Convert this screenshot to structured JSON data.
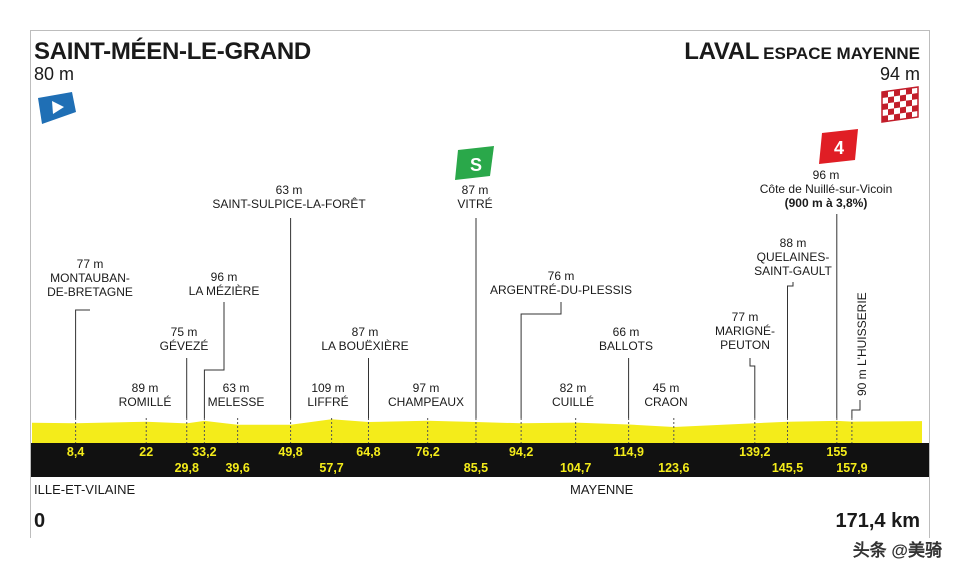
{
  "start": {
    "name": "SAINT-MÉEN-LE-GRAND",
    "altitude": "80 m"
  },
  "finish": {
    "name": "LAVAL",
    "subname": "ESPACE MAYENNE",
    "altitude": "94 m"
  },
  "regions": {
    "left": "ILLE-ET-VILAINE",
    "right": "MAYENNE"
  },
  "distance": {
    "start": "0",
    "end": "171,4 km"
  },
  "watermark": "头条 @美骑",
  "colors": {
    "profile": "#f4ec1a",
    "strip": "#111111",
    "sprint": "#2aa84a",
    "climb": "#e01e25",
    "start_flag": "#1f6fb5"
  },
  "chart_data": {
    "type": "area",
    "x_unit": "km",
    "xlim": [
      0,
      171.4
    ],
    "km_markers_top": [
      "8,4",
      "22",
      "33,2",
      "49,8",
      "64,8",
      "76,2",
      "94,2",
      "114,9",
      "139,2",
      "155"
    ],
    "km_markers_bottom": [
      "29,8",
      "39,6",
      "57,7",
      "85,5",
      "104,7",
      "123,6",
      "145,5",
      "157,9"
    ],
    "km_marker_values_top": [
      8.4,
      22,
      33.2,
      49.8,
      64.8,
      76.2,
      94.2,
      114.9,
      139.2,
      155
    ],
    "km_marker_values_bottom": [
      29.8,
      39.6,
      57.7,
      85.5,
      104.7,
      123.6,
      145.5,
      157.9
    ],
    "waypoints": [
      {
        "km": 8.4,
        "alt": "77 m",
        "lines": [
          "MONTAUBAN-",
          "DE-BRETAGNE"
        ]
      },
      {
        "km": 22,
        "alt": "89 m",
        "lines": [
          "ROMILLÉ"
        ]
      },
      {
        "km": 29.8,
        "alt": "75 m",
        "lines": [
          "GÉVEZÉ"
        ]
      },
      {
        "km": 33.2,
        "alt": "96 m",
        "lines": [
          "LA MÉZIÈRE"
        ]
      },
      {
        "km": 39.6,
        "alt": "63 m",
        "lines": [
          "MELESSE"
        ]
      },
      {
        "km": 49.8,
        "alt": "63 m",
        "lines": [
          "SAINT-SULPICE-LA-FORÊT"
        ]
      },
      {
        "km": 57.7,
        "alt": "109 m",
        "lines": [
          "LIFFRÉ"
        ]
      },
      {
        "km": 64.8,
        "alt": "87 m",
        "lines": [
          "LA BOUËXIÈRE"
        ]
      },
      {
        "km": 76.2,
        "alt": "97 m",
        "lines": [
          "CHAMPEAUX"
        ]
      },
      {
        "km": 85.5,
        "alt": "87 m",
        "lines": [
          "VITRÉ"
        ]
      },
      {
        "km": 94.2,
        "alt": "76 m",
        "lines": [
          "ARGENTRÉ-DU-PLESSIS"
        ]
      },
      {
        "km": 104.7,
        "alt": "82 m",
        "lines": [
          "CUILLÉ"
        ]
      },
      {
        "km": 114.9,
        "alt": "66 m",
        "lines": [
          "BALLOTS"
        ]
      },
      {
        "km": 123.6,
        "alt": "45 m",
        "lines": [
          "CRAON"
        ]
      },
      {
        "km": 139.2,
        "alt": "77 m",
        "lines": [
          "MARIGNÉ-",
          "PEUTON"
        ]
      },
      {
        "km": 145.5,
        "alt": "88 m",
        "lines": [
          "QUELAINES-",
          "SAINT-GAULT"
        ]
      },
      {
        "km": 155,
        "alt": "96 m",
        "lines": [
          "Côte de Nuillé-sur-Vicoin",
          "(900 m à 3,8%)"
        ]
      },
      {
        "km": 157.9,
        "alt": "90 m",
        "lines": [
          "L'HUISSERIE"
        ]
      }
    ],
    "sprint": {
      "km": 85.5,
      "label": "S"
    },
    "climb": {
      "km": 155,
      "category": "4"
    }
  }
}
